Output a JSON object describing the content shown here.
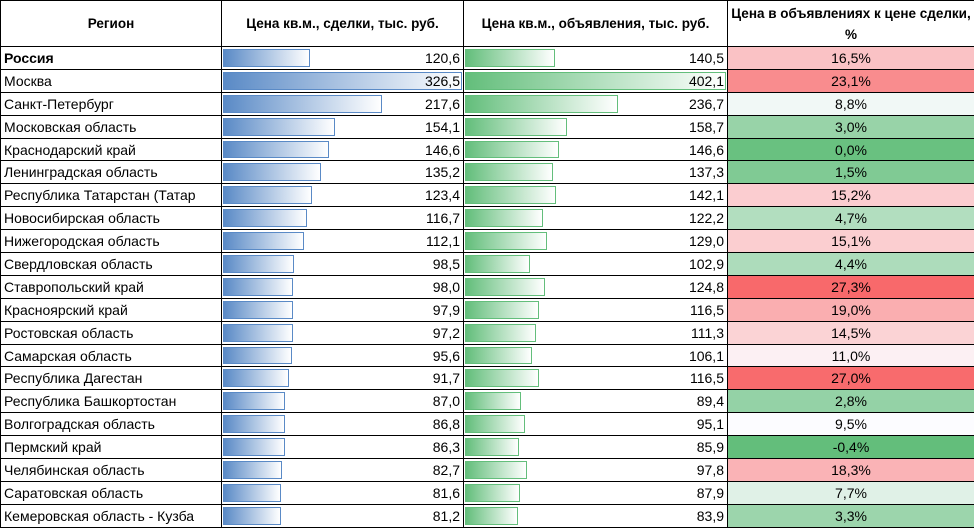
{
  "chart_data": {
    "type": "table",
    "columns": [
      "Регион",
      "Цена кв.м., сделки, тыс. руб.",
      "Цена кв.м., объявления, тыс. руб.",
      "Цена в объявлениях к цене сделки, %"
    ],
    "rows": [
      {
        "region": "Россия",
        "deal": "120,6",
        "ad": "140,5",
        "ratio": "16,5%",
        "bold": true
      },
      {
        "region": "Москва",
        "deal": "326,5",
        "ad": "402,1",
        "ratio": "23,1%"
      },
      {
        "region": "Санкт-Петербург",
        "deal": "217,6",
        "ad": "236,7",
        "ratio": "8,8%"
      },
      {
        "region": "Московская область",
        "deal": "154,1",
        "ad": "158,7",
        "ratio": "3,0%"
      },
      {
        "region": "Краснодарский край",
        "deal": "146,6",
        "ad": "146,6",
        "ratio": "0,0%"
      },
      {
        "region": "Ленинградская область",
        "deal": "135,2",
        "ad": "137,3",
        "ratio": "1,5%"
      },
      {
        "region": "Республика Татарстан (Татар",
        "deal": "123,4",
        "ad": "142,1",
        "ratio": "15,2%"
      },
      {
        "region": "Новосибирская область",
        "deal": "116,7",
        "ad": "122,2",
        "ratio": "4,7%"
      },
      {
        "region": "Нижегородская область",
        "deal": "112,1",
        "ad": "129,0",
        "ratio": "15,1%"
      },
      {
        "region": "Свердловская область",
        "deal": "98,5",
        "ad": "102,9",
        "ratio": "4,4%"
      },
      {
        "region": "Ставропольский край",
        "deal": "98,0",
        "ad": "124,8",
        "ratio": "27,3%"
      },
      {
        "region": "Красноярский край",
        "deal": "97,9",
        "ad": "116,5",
        "ratio": "19,0%"
      },
      {
        "region": "Ростовская область",
        "deal": "97,2",
        "ad": "111,3",
        "ratio": "14,5%"
      },
      {
        "region": "Самарская область",
        "deal": "95,6",
        "ad": "106,1",
        "ratio": "11,0%"
      },
      {
        "region": "Республика Дагестан",
        "deal": "91,7",
        "ad": "116,5",
        "ratio": "27,0%"
      },
      {
        "region": "Республика Башкортостан",
        "deal": "87,0",
        "ad": "89,4",
        "ratio": "2,8%"
      },
      {
        "region": "Волгоградская область",
        "deal": "86,8",
        "ad": "95,1",
        "ratio": "9,5%"
      },
      {
        "region": "Пермский край",
        "deal": "86,3",
        "ad": "85,9",
        "ratio": "-0,4%"
      },
      {
        "region": "Челябинская область",
        "deal": "82,7",
        "ad": "97,8",
        "ratio": "18,3%"
      },
      {
        "region": "Саратовская область",
        "deal": "81,6",
        "ad": "87,9",
        "ratio": "7,7%"
      },
      {
        "region": "Кемеровская область - Кузба",
        "deal": "81,2",
        "ad": "83,9",
        "ratio": "3,3%"
      }
    ],
    "colors": {
      "bar_deal": "#5a8ac6",
      "bar_ad": "#63be7b",
      "scale_min": "#63be7b",
      "scale_mid": "#fcfcff",
      "scale_max": "#f8696b"
    }
  }
}
